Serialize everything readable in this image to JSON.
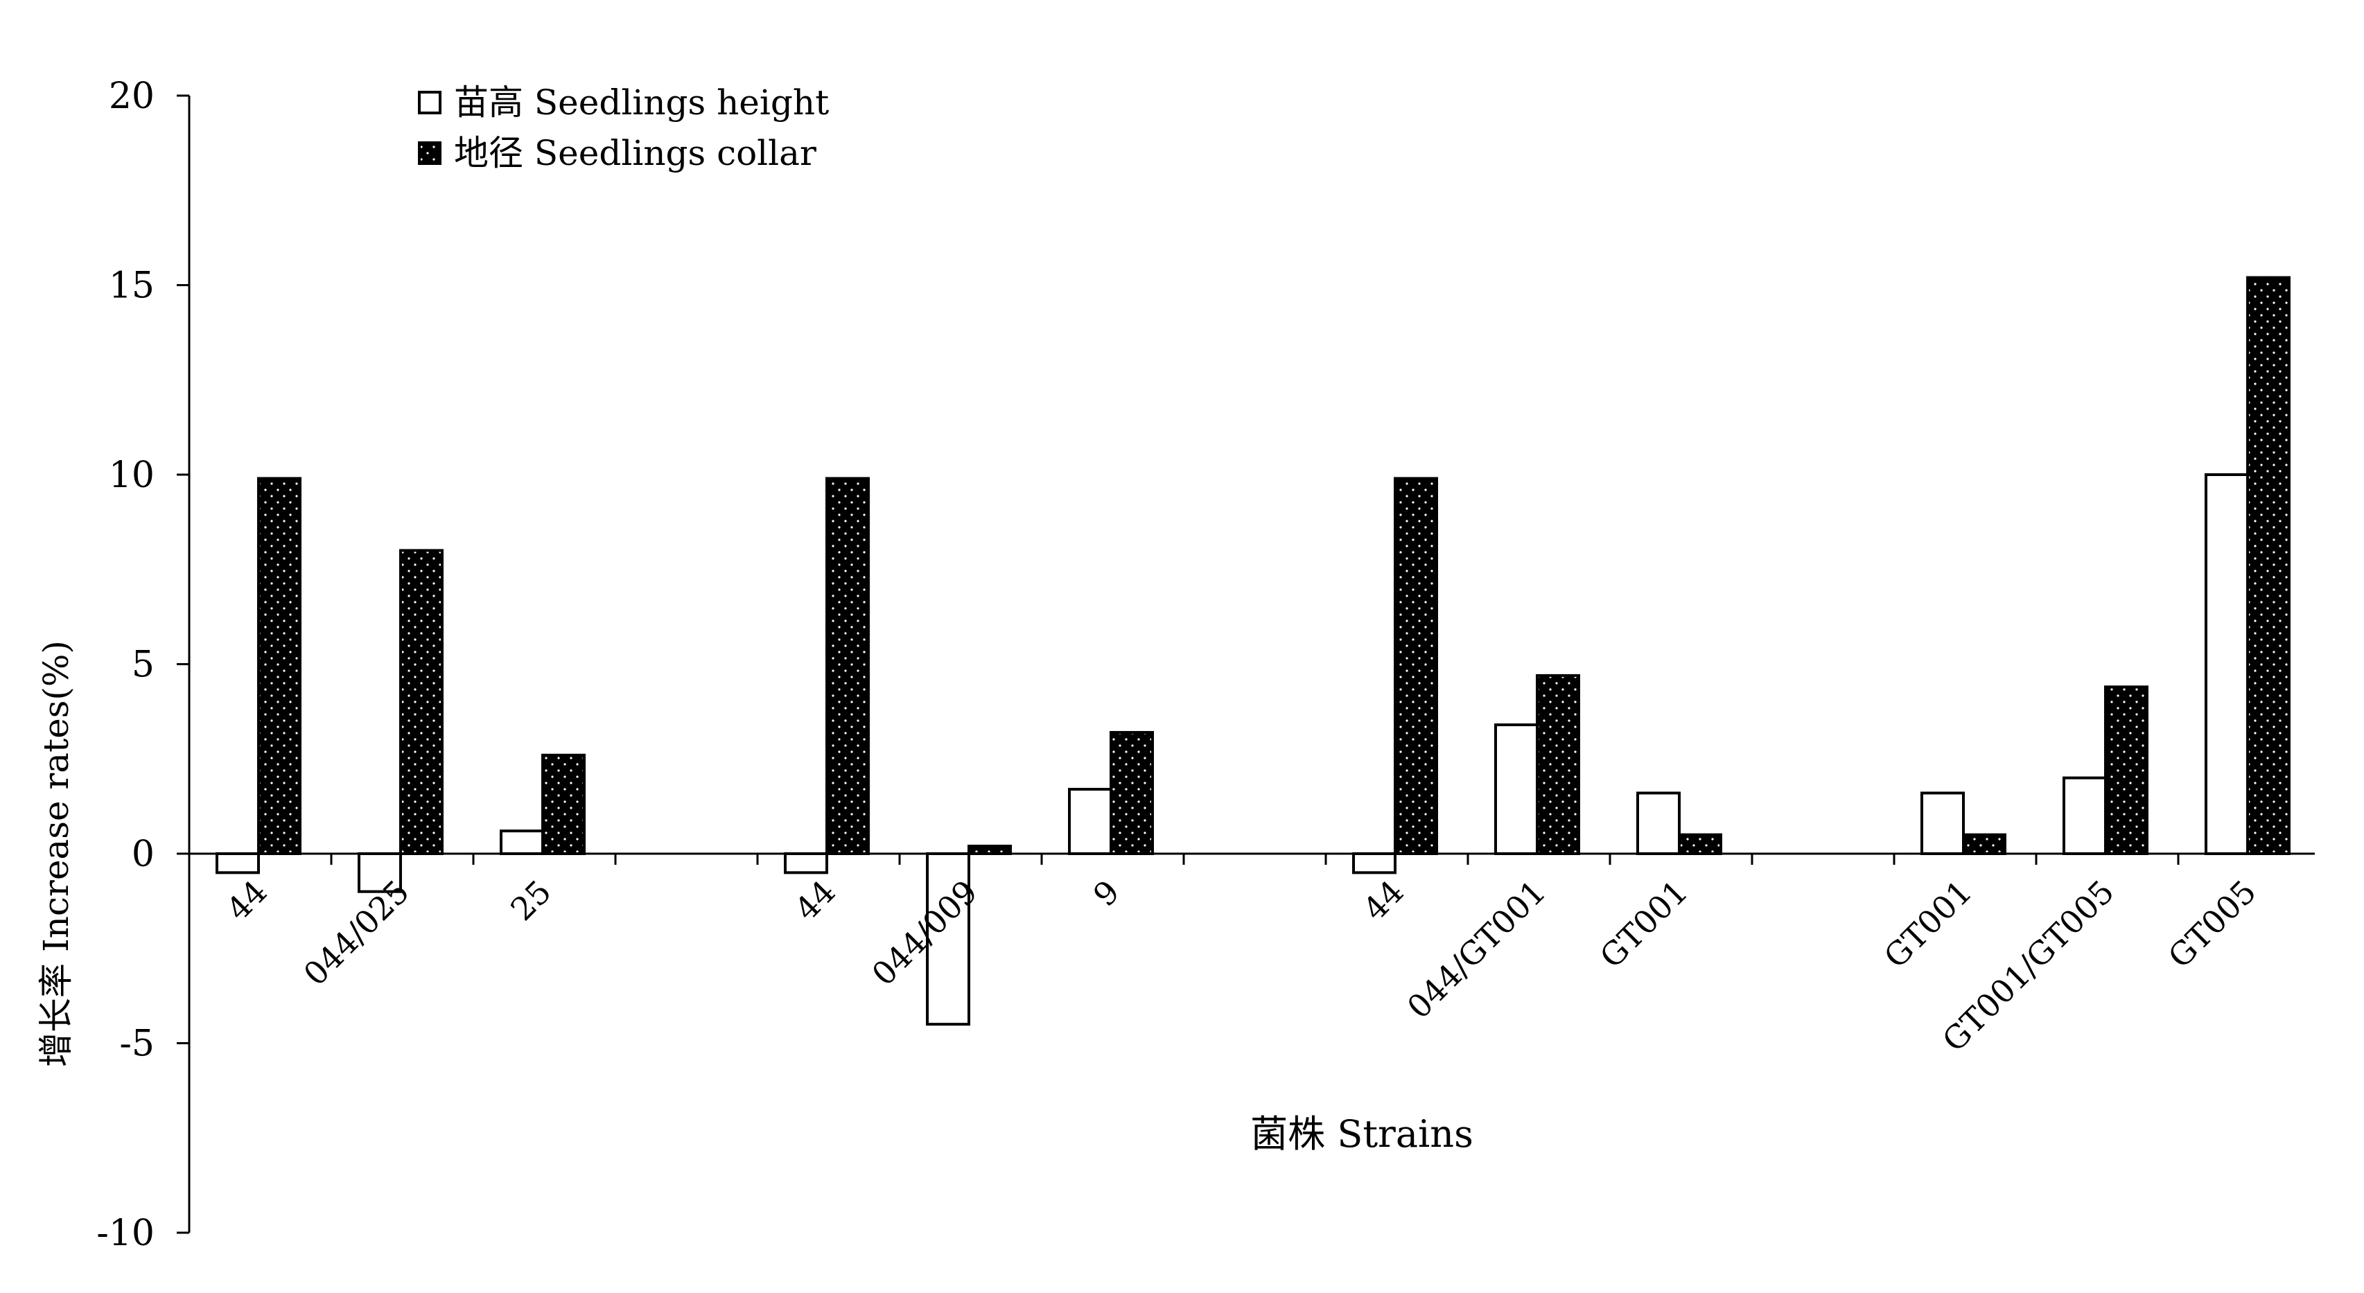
{
  "chart_data": {
    "type": "bar",
    "title": "",
    "xlabel": "菌株 Strains",
    "ylabel": "增长率 Increase rates(%)",
    "ylim": [
      -10,
      20
    ],
    "yticks": [
      -10,
      -5,
      0,
      5,
      10,
      15,
      20
    ],
    "grid": false,
    "legend_position": "top-left",
    "categories": [
      "44",
      "044/025",
      "25",
      "44",
      "044/009",
      "9",
      "44",
      "044/GT001",
      "GT001",
      "GT001",
      "GT001/GT005",
      "GT005"
    ],
    "series": [
      {
        "name": "苗高 Seedlings height",
        "fill": "white",
        "values": [
          -0.5,
          -1.0,
          0.6,
          -0.5,
          -4.5,
          1.7,
          -0.5,
          3.4,
          1.6,
          1.6,
          2.0,
          10.0
        ]
      },
      {
        "name": "地径 Seedlings collar",
        "fill": "black-dotted",
        "values": [
          9.9,
          8.0,
          2.6,
          9.9,
          0.2,
          3.2,
          9.9,
          4.7,
          0.5,
          0.5,
          4.4,
          15.2
        ]
      }
    ]
  },
  "colors": {
    "axis": "#000000",
    "bar_outline": "#000000",
    "bar_white": "#ffffff",
    "bar_dark": "#000000",
    "dot": "#ffffff"
  }
}
